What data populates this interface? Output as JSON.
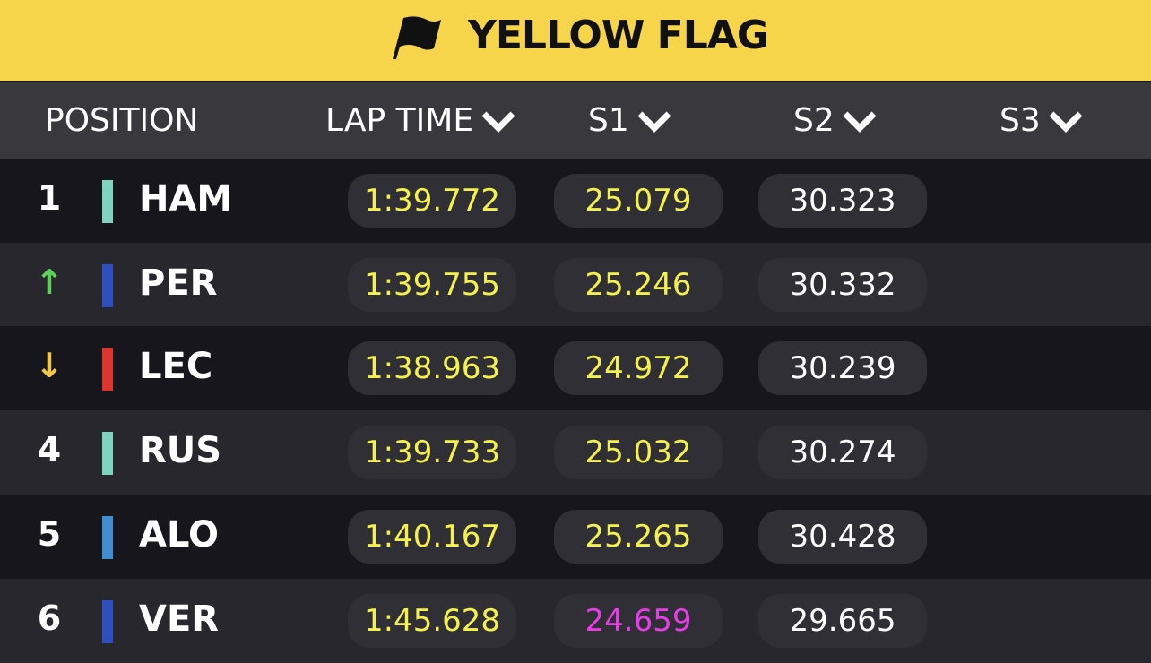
{
  "header": {
    "title": "YELLOW FLAG"
  },
  "table": {
    "columns": [
      "POSITION",
      "LAP TIME",
      "S1",
      "S2",
      "S3"
    ],
    "rows": [
      {
        "position": "1",
        "position_color": "#ffffff",
        "driver": "HAM",
        "team_color": "#7fd3c0",
        "lap_time": "1:39.772",
        "s1": "25.079",
        "s1_color": "#f4f04c",
        "s2": "30.323"
      },
      {
        "position": "↑",
        "position_color": "#5fd15a",
        "driver": "PER",
        "team_color": "#2f4fc0",
        "lap_time": "1:39.755",
        "s1": "25.246",
        "s1_color": "#f4f04c",
        "s2": "30.332"
      },
      {
        "position": "↓",
        "position_color": "#f0c84a",
        "driver": "LEC",
        "team_color": "#dc3430",
        "lap_time": "1:38.963",
        "s1": "24.972",
        "s1_color": "#f4f04c",
        "s2": "30.239"
      },
      {
        "position": "4",
        "position_color": "#ffffff",
        "driver": "RUS",
        "team_color": "#7fd3c0",
        "lap_time": "1:39.733",
        "s1": "25.032",
        "s1_color": "#f4f04c",
        "s2": "30.274"
      },
      {
        "position": "5",
        "position_color": "#ffffff",
        "driver": "ALO",
        "team_color": "#3f8fd0",
        "lap_time": "1:40.167",
        "s1": "25.265",
        "s1_color": "#f4f04c",
        "s2": "30.428"
      },
      {
        "position": "6",
        "position_color": "#ffffff",
        "driver": "VER",
        "team_color": "#2f4fc0",
        "lap_time": "1:45.628",
        "s1": "24.659",
        "s1_color": "#e63de6",
        "s2": "29.665"
      }
    ]
  }
}
